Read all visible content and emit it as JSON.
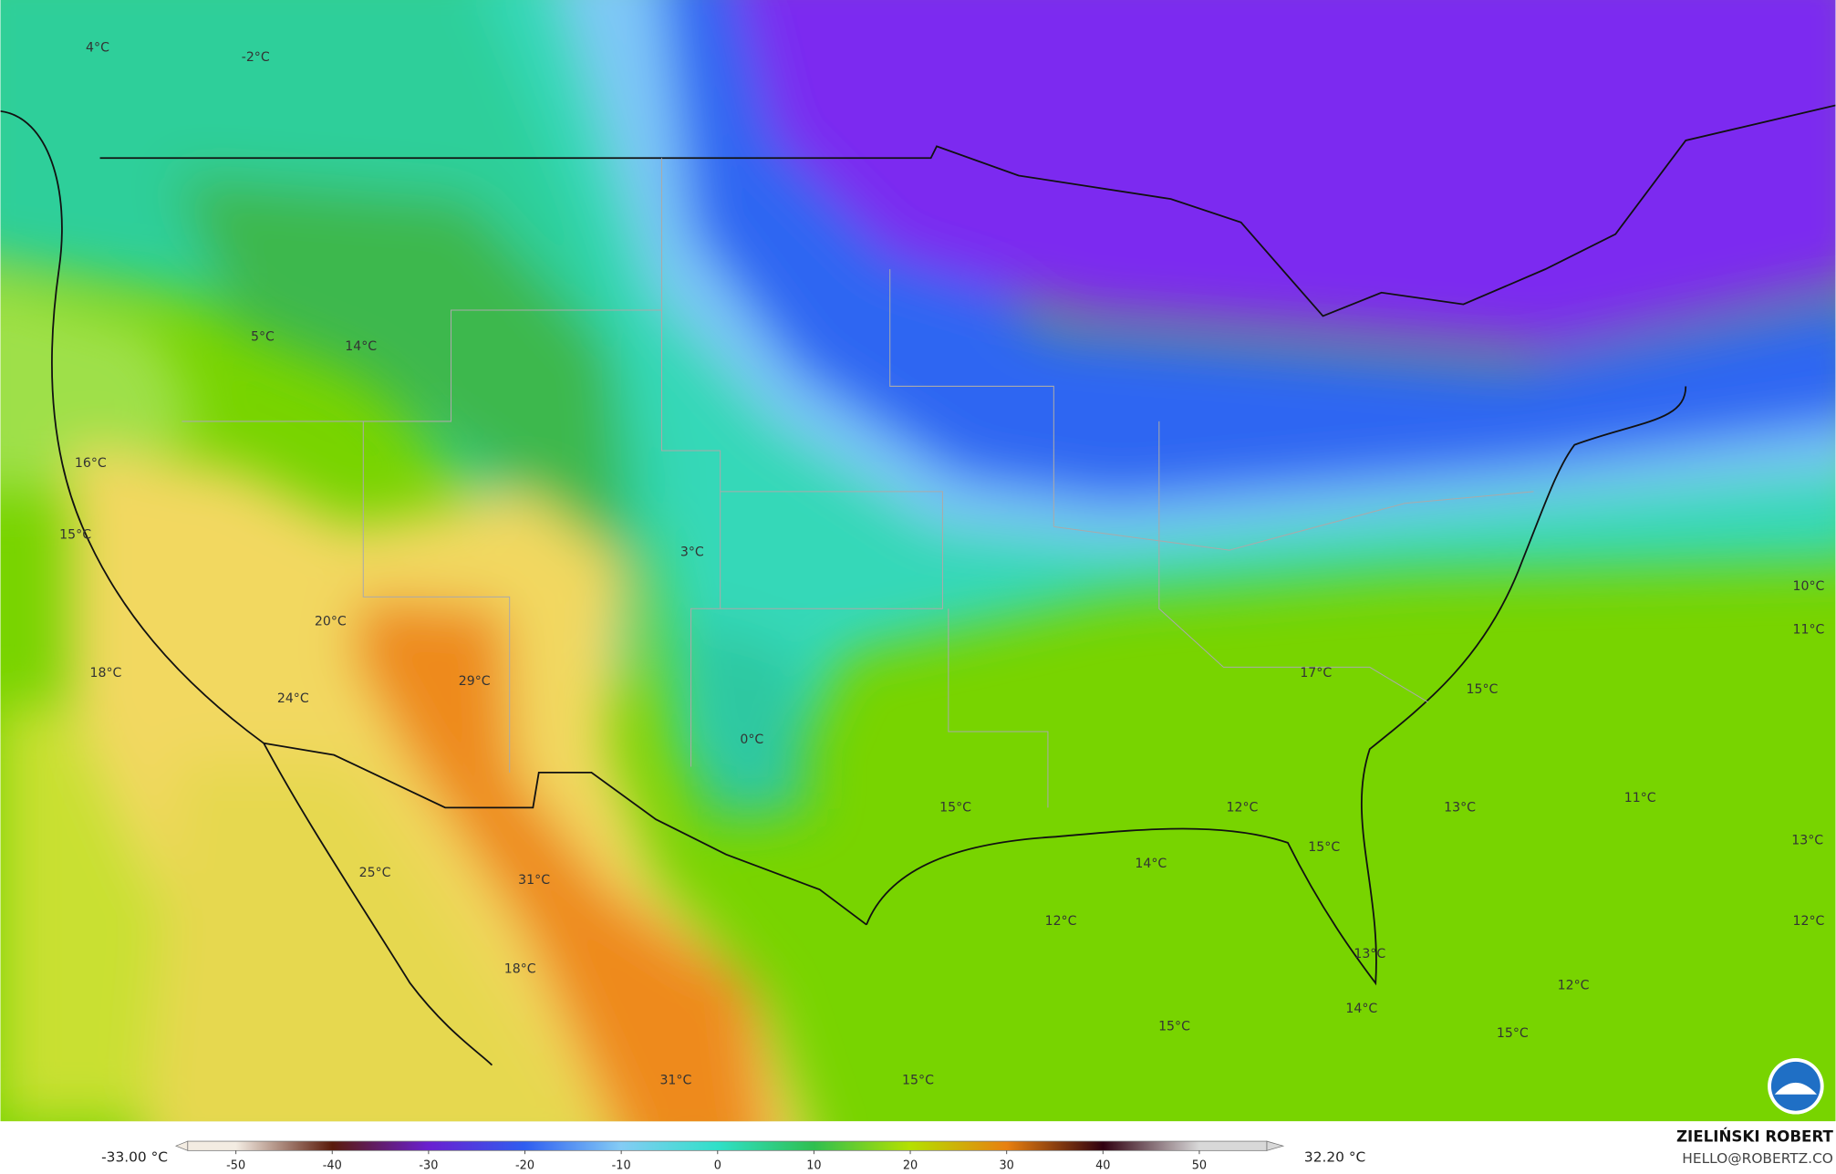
{
  "map": {
    "labels": [
      "4°C",
      "-2°C",
      "5°C",
      "14°C",
      "16°C",
      "15°C",
      "3°C",
      "20°C",
      "18°C",
      "24°C",
      "29°C",
      "0°C",
      "25°C",
      "31°C",
      "18°C",
      "31°C",
      "15°C",
      "12°C",
      "13°C",
      "11°C",
      "14°C",
      "15°C",
      "12°C",
      "13°C",
      "14°C",
      "15°C",
      "15°C",
      "15°C",
      "12°C",
      "17°C",
      "15°C",
      "10°C",
      "11°C",
      "13°C",
      "12°C"
    ]
  },
  "colorbar": {
    "min_label": "-33.00 °C",
    "max_label": "32.20 °C",
    "range": [
      -55,
      57
    ],
    "ticks": [
      -50,
      -40,
      -30,
      -20,
      -10,
      0,
      10,
      20,
      30,
      40,
      50
    ],
    "colors": [
      "#f3ece2",
      "#5a1a0a",
      "#6a20d0",
      "#2f5ef0",
      "#84ccf5",
      "#30e0c8",
      "#2fbf50",
      "#b5e000",
      "#e88010",
      "#300010",
      "#d8d8d8"
    ]
  },
  "credit": {
    "author": "ZIELIŃSKI ROBERT",
    "email": "HELLO@ROBERTZ.CO"
  }
}
